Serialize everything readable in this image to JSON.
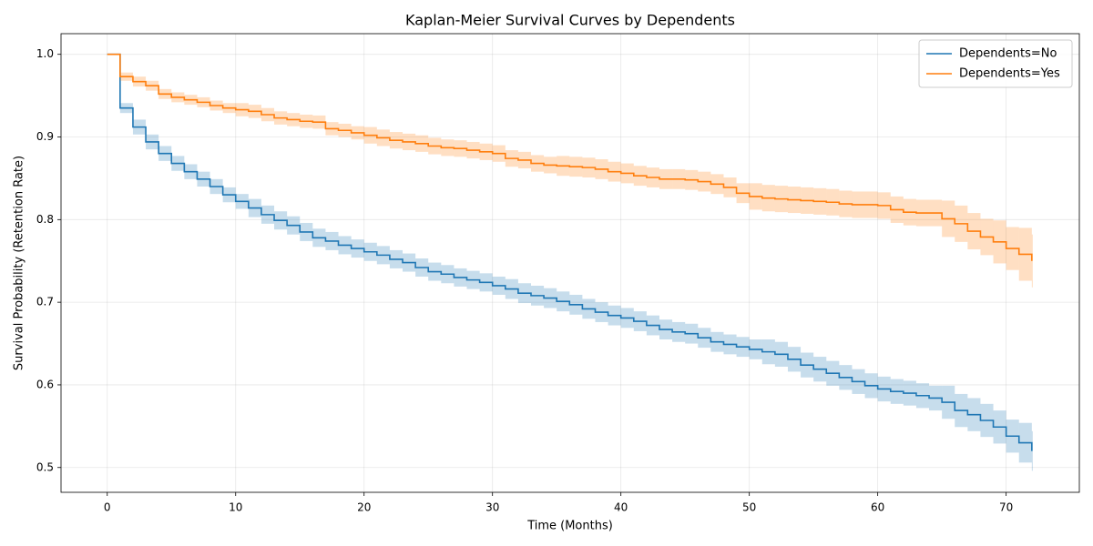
{
  "chart_data": {
    "type": "step",
    "title": "Kaplan-Meier Survival Curves by Dependents",
    "xlabel": "Time (Months)",
    "ylabel": "Survival Probability (Retention Rate)",
    "x": [
      0,
      1,
      2,
      3,
      4,
      5,
      6,
      7,
      8,
      9,
      10,
      11,
      12,
      13,
      14,
      15,
      16,
      17,
      18,
      19,
      20,
      21,
      22,
      23,
      24,
      25,
      26,
      27,
      28,
      29,
      30,
      31,
      32,
      33,
      34,
      35,
      36,
      37,
      38,
      39,
      40,
      41,
      42,
      43,
      44,
      45,
      46,
      47,
      48,
      49,
      50,
      51,
      52,
      53,
      54,
      55,
      56,
      57,
      58,
      59,
      60,
      61,
      62,
      63,
      64,
      65,
      66,
      67,
      68,
      69,
      70,
      71,
      72
    ],
    "series": [
      {
        "name": "Dependents=No",
        "color": "#1f77b4",
        "values": [
          1.0,
          0.935,
          0.912,
          0.894,
          0.88,
          0.868,
          0.858,
          0.849,
          0.84,
          0.83,
          0.822,
          0.814,
          0.806,
          0.799,
          0.793,
          0.785,
          0.778,
          0.774,
          0.769,
          0.765,
          0.761,
          0.757,
          0.752,
          0.748,
          0.742,
          0.737,
          0.734,
          0.73,
          0.727,
          0.724,
          0.72,
          0.716,
          0.711,
          0.708,
          0.705,
          0.701,
          0.697,
          0.692,
          0.688,
          0.684,
          0.681,
          0.677,
          0.672,
          0.667,
          0.664,
          0.662,
          0.657,
          0.652,
          0.649,
          0.646,
          0.643,
          0.64,
          0.637,
          0.631,
          0.624,
          0.619,
          0.614,
          0.609,
          0.604,
          0.599,
          0.595,
          0.592,
          0.59,
          0.587,
          0.584,
          0.579,
          0.569,
          0.564,
          0.557,
          0.549,
          0.538,
          0.53,
          0.52
        ],
        "error": [
          0,
          0.006,
          0.009,
          0.009,
          0.009,
          0.009,
          0.009,
          0.009,
          0.009,
          0.009,
          0.009,
          0.011,
          0.011,
          0.011,
          0.011,
          0.011,
          0.011,
          0.011,
          0.011,
          0.011,
          0.011,
          0.011,
          0.011,
          0.011,
          0.011,
          0.011,
          0.011,
          0.011,
          0.011,
          0.011,
          0.011,
          0.012,
          0.012,
          0.012,
          0.012,
          0.012,
          0.012,
          0.012,
          0.012,
          0.012,
          0.012,
          0.012,
          0.012,
          0.012,
          0.012,
          0.012,
          0.012,
          0.012,
          0.012,
          0.012,
          0.012,
          0.015,
          0.015,
          0.015,
          0.015,
          0.015,
          0.015,
          0.015,
          0.015,
          0.015,
          0.015,
          0.015,
          0.015,
          0.015,
          0.015,
          0.02,
          0.02,
          0.02,
          0.02,
          0.02,
          0.02,
          0.024,
          0.024
        ]
      },
      {
        "name": "Dependents=Yes",
        "color": "#ff7f0e",
        "values": [
          1.0,
          0.973,
          0.967,
          0.962,
          0.952,
          0.948,
          0.945,
          0.942,
          0.938,
          0.935,
          0.933,
          0.931,
          0.927,
          0.923,
          0.921,
          0.919,
          0.918,
          0.91,
          0.908,
          0.905,
          0.902,
          0.899,
          0.896,
          0.894,
          0.892,
          0.889,
          0.887,
          0.886,
          0.884,
          0.882,
          0.88,
          0.874,
          0.872,
          0.868,
          0.866,
          0.865,
          0.864,
          0.863,
          0.861,
          0.858,
          0.856,
          0.853,
          0.851,
          0.849,
          0.849,
          0.848,
          0.846,
          0.843,
          0.839,
          0.832,
          0.828,
          0.826,
          0.825,
          0.824,
          0.823,
          0.822,
          0.821,
          0.819,
          0.818,
          0.818,
          0.817,
          0.812,
          0.809,
          0.808,
          0.808,
          0.801,
          0.795,
          0.786,
          0.779,
          0.773,
          0.765,
          0.758,
          0.75
        ],
        "error": [
          0,
          0.005,
          0.006,
          0.006,
          0.006,
          0.006,
          0.006,
          0.006,
          0.006,
          0.006,
          0.008,
          0.008,
          0.008,
          0.008,
          0.008,
          0.008,
          0.008,
          0.008,
          0.008,
          0.008,
          0.01,
          0.01,
          0.01,
          0.01,
          0.01,
          0.01,
          0.01,
          0.01,
          0.01,
          0.01,
          0.01,
          0.01,
          0.01,
          0.01,
          0.01,
          0.012,
          0.012,
          0.012,
          0.012,
          0.012,
          0.012,
          0.012,
          0.012,
          0.012,
          0.012,
          0.012,
          0.012,
          0.012,
          0.012,
          0.012,
          0.016,
          0.016,
          0.016,
          0.016,
          0.016,
          0.016,
          0.016,
          0.016,
          0.016,
          0.016,
          0.016,
          0.016,
          0.016,
          0.016,
          0.016,
          0.022,
          0.022,
          0.022,
          0.022,
          0.026,
          0.026,
          0.032,
          0.032
        ]
      }
    ],
    "xlim": [
      -3.6,
      75.7
    ],
    "ylim": [
      0.47,
      1.025
    ],
    "xticks": [
      0,
      10,
      20,
      30,
      40,
      50,
      60,
      70
    ],
    "yticks": [
      0.5,
      0.6,
      0.7,
      0.8,
      0.9,
      {
        "value": 1.0,
        "label": "1.0"
      }
    ],
    "grid": true,
    "legend": "upper right"
  }
}
